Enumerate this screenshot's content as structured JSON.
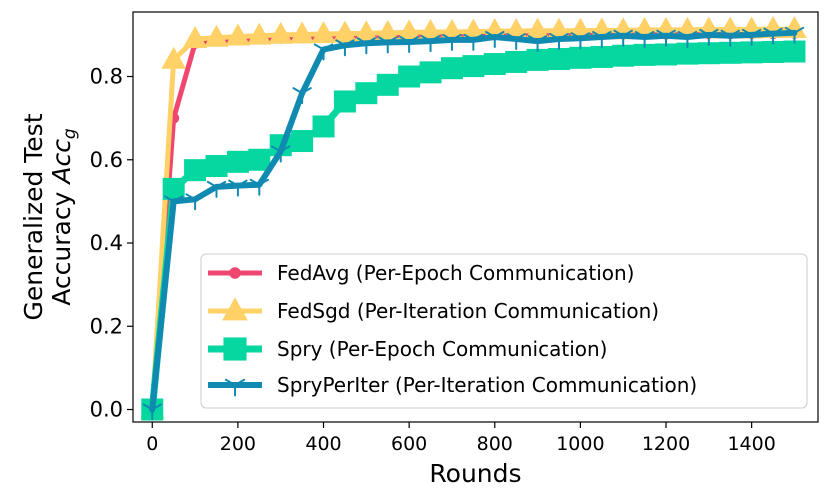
{
  "chart_data": {
    "type": "line",
    "xlabel": "Rounds",
    "ylabel_line1": "Generalized Test",
    "ylabel_line2_text": "Accuracy ",
    "ylabel_line2_math": "Acc",
    "ylabel_line2_sub": "g",
    "xlim": [
      -45,
      1555
    ],
    "ylim": [
      -0.03,
      0.955
    ],
    "xticks": [
      0,
      200,
      400,
      600,
      800,
      1000,
      1200,
      1400
    ],
    "xtick_labels": [
      "0",
      "200",
      "400",
      "600",
      "800",
      "1000",
      "1200",
      "1400"
    ],
    "yticks": [
      0.0,
      0.2,
      0.4,
      0.6,
      0.8
    ],
    "ytick_labels": [
      "0.0",
      "0.2",
      "0.4",
      "0.6",
      "0.8"
    ],
    "legend_position": "lower-right",
    "series": [
      {
        "name": "FedAvg (Per-Epoch Communication)",
        "color": "#ef476f",
        "marker": "circle",
        "x": [
          0,
          50,
          100,
          150,
          200,
          250,
          300,
          350,
          400,
          450,
          500,
          550,
          600,
          650,
          700,
          750,
          800,
          850,
          900,
          950,
          1000,
          1050,
          1100,
          1150,
          1200,
          1250,
          1300,
          1350,
          1400,
          1450,
          1500
        ],
        "values": [
          0.0,
          0.7,
          0.88,
          0.885,
          0.888,
          0.89,
          0.892,
          0.893,
          0.895,
          0.896,
          0.897,
          0.897,
          0.898,
          0.899,
          0.899,
          0.9,
          0.9,
          0.9,
          0.9,
          0.901,
          0.901,
          0.901,
          0.902,
          0.902,
          0.902,
          0.902,
          0.903,
          0.903,
          0.903,
          0.903,
          0.904
        ]
      },
      {
        "name": "FedSgd (Per-Iteration Communication)",
        "color": "#ffd166",
        "marker": "triangle",
        "x": [
          0,
          50,
          100,
          150,
          200,
          250,
          300,
          350,
          400,
          450,
          500,
          550,
          600,
          650,
          700,
          750,
          800,
          850,
          900,
          950,
          1000,
          1050,
          1100,
          1150,
          1200,
          1250,
          1300,
          1350,
          1400,
          1450,
          1500
        ],
        "values": [
          0.0,
          0.84,
          0.89,
          0.893,
          0.896,
          0.898,
          0.9,
          0.901,
          0.902,
          0.903,
          0.904,
          0.905,
          0.906,
          0.907,
          0.907,
          0.908,
          0.909,
          0.909,
          0.91,
          0.91,
          0.91,
          0.911,
          0.911,
          0.912,
          0.912,
          0.912,
          0.913,
          0.913,
          0.913,
          0.914,
          0.914
        ]
      },
      {
        "name": "Spry (Per-Epoch Communication)",
        "color": "#06d6a0",
        "marker": "square",
        "x": [
          0,
          50,
          100,
          150,
          200,
          250,
          300,
          350,
          400,
          450,
          500,
          550,
          600,
          650,
          700,
          750,
          800,
          850,
          900,
          950,
          1000,
          1050,
          1100,
          1150,
          1200,
          1250,
          1300,
          1350,
          1400,
          1450,
          1500
        ],
        "values": [
          0.0,
          0.53,
          0.575,
          0.585,
          0.595,
          0.6,
          0.635,
          0.645,
          0.68,
          0.74,
          0.76,
          0.78,
          0.8,
          0.81,
          0.82,
          0.825,
          0.83,
          0.835,
          0.84,
          0.842,
          0.845,
          0.847,
          0.85,
          0.852,
          0.853,
          0.855,
          0.856,
          0.857,
          0.858,
          0.859,
          0.86
        ]
      },
      {
        "name": "SpryPerIter (Per-Iteration Communication)",
        "color": "#118ab2",
        "marker": "tri_down",
        "x": [
          0,
          50,
          100,
          150,
          200,
          250,
          300,
          350,
          400,
          450,
          500,
          550,
          600,
          650,
          700,
          750,
          800,
          850,
          900,
          950,
          1000,
          1050,
          1100,
          1150,
          1200,
          1250,
          1300,
          1350,
          1400,
          1450,
          1500
        ],
        "values": [
          0.0,
          0.5,
          0.505,
          0.535,
          0.538,
          0.54,
          0.62,
          0.76,
          0.865,
          0.875,
          0.88,
          0.882,
          0.883,
          0.885,
          0.888,
          0.888,
          0.895,
          0.89,
          0.885,
          0.89,
          0.892,
          0.895,
          0.898,
          0.895,
          0.898,
          0.895,
          0.9,
          0.898,
          0.9,
          0.903,
          0.905
        ]
      }
    ]
  }
}
